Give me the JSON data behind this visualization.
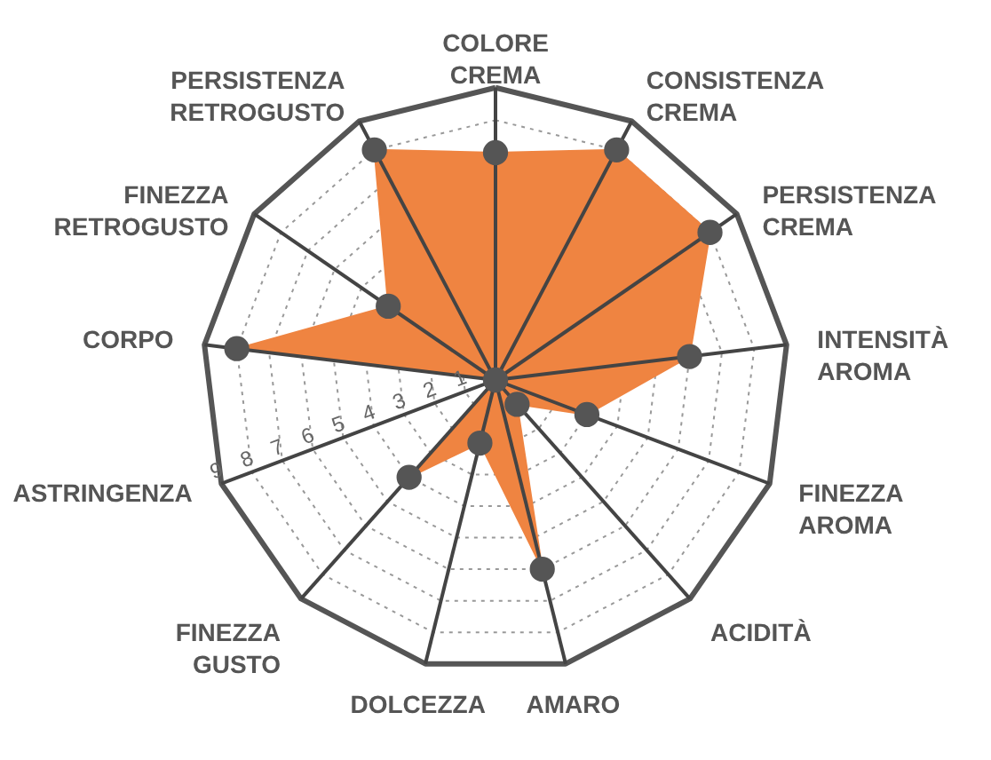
{
  "chart_data": {
    "type": "radar",
    "categories": [
      "COLORE CREMA",
      "CONSISTENZA CREMA",
      "PERSISTENZA CREMA",
      "INTENSITÀ AROMA",
      "FINEZZA AROMA",
      "ACIDITÀ",
      "AMARO",
      "DOLCEZZA",
      "FINEZZA GUSTO",
      "ASTRINGENZA",
      "CORPO",
      "FINEZZA RETROGUSTO",
      "PERSISTENZA RETROGUSTO"
    ],
    "series": [
      {
        "color": "#ef8441",
        "values": [
          7,
          8,
          8,
          6,
          3,
          1,
          6,
          2,
          4,
          0,
          8,
          4,
          8
        ]
      }
    ],
    "ylim": [
      0,
      9
    ],
    "yticks": [
      1,
      2,
      3,
      4,
      5,
      6,
      7,
      8,
      9
    ],
    "grid": true,
    "marker": "circle"
  }
}
